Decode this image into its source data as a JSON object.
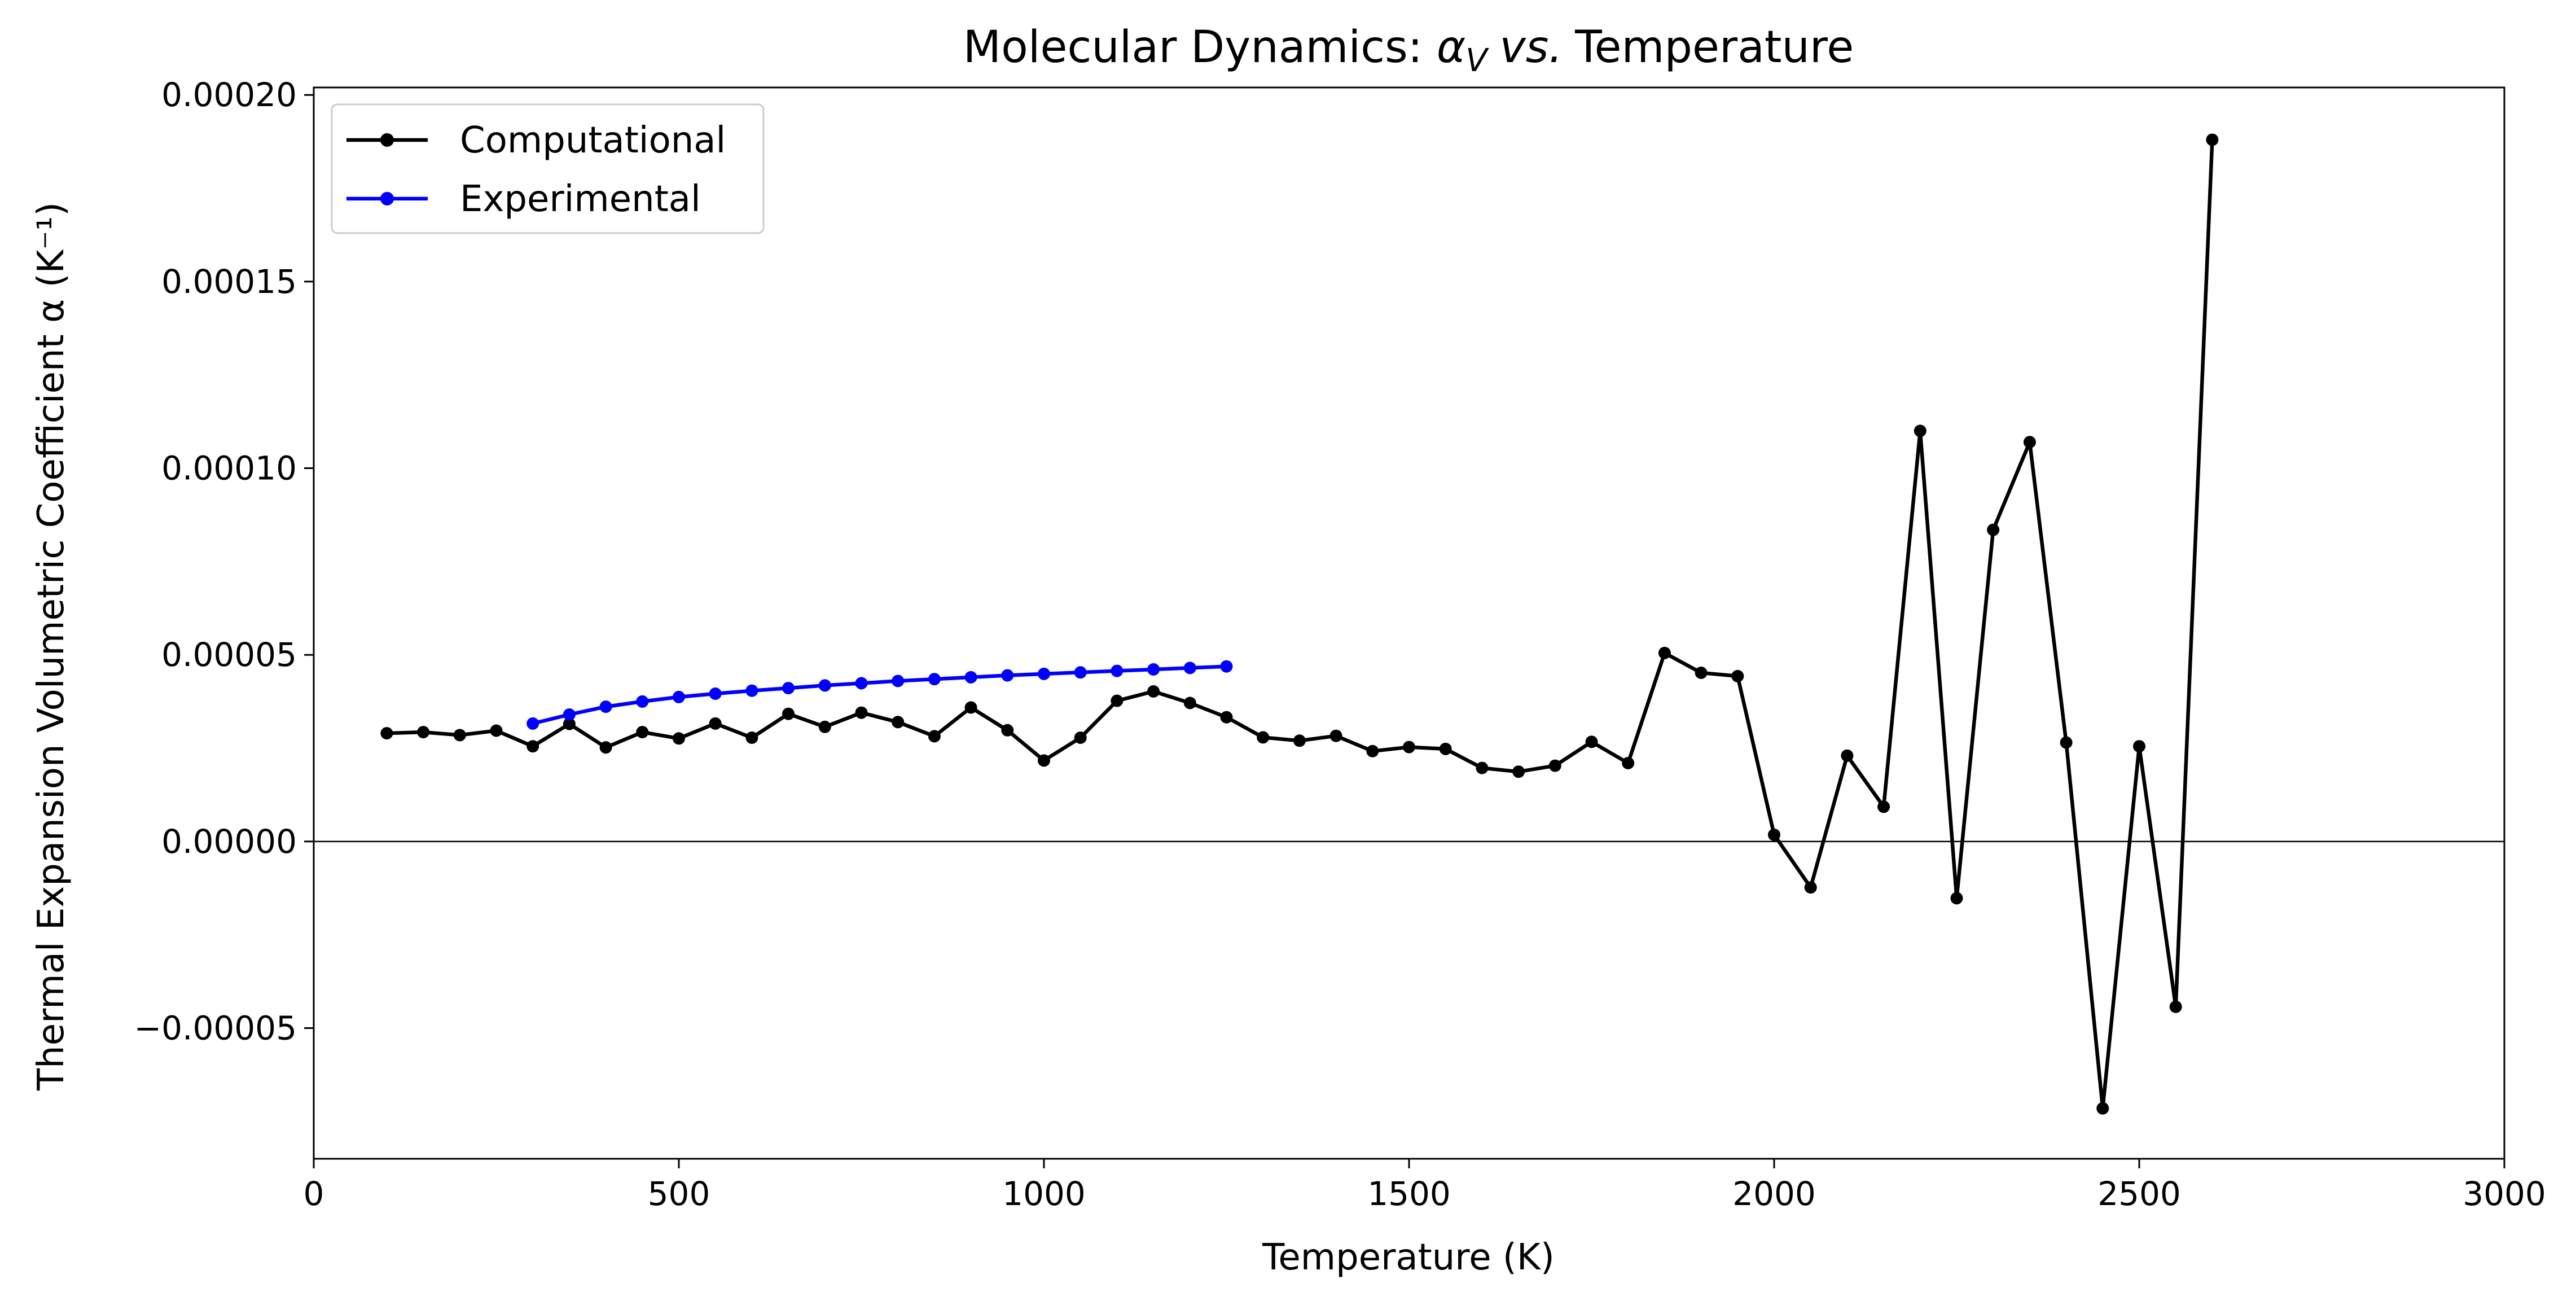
{
  "chart_data": {
    "type": "line",
    "title": {
      "prefix": "Molecular Dynamics: ",
      "alpha": "α",
      "sub": "V",
      "vs": "vs.",
      "suffix": "Temperature"
    },
    "xlabel": "Temperature (K)",
    "ylabel": "Thermal Expansion Volumetric Coefficient α (K⁻¹)",
    "xlim": [
      0,
      3000
    ],
    "ylim": [
      -8.5e-05,
      0.000202
    ],
    "xticks": [
      0,
      500,
      1000,
      1500,
      2000,
      2500,
      3000
    ],
    "xtick_labels": [
      "0",
      "500",
      "1000",
      "1500",
      "2000",
      "2500",
      "3000"
    ],
    "yticks": [
      -5e-05,
      0,
      5e-05,
      0.0001,
      0.00015,
      0.0002
    ],
    "ytick_labels": [
      "−0.00005",
      "0.00000",
      "0.00005",
      "0.00010",
      "0.00015",
      "0.00020"
    ],
    "zero_line": true,
    "grid": false,
    "legend_position": "top-left",
    "series": [
      {
        "name": "Computational",
        "color": "#000000",
        "marker": "circle",
        "points": [
          [
            100,
            2.9e-05
          ],
          [
            150,
            2.93e-05
          ],
          [
            200,
            2.85e-05
          ],
          [
            250,
            2.97e-05
          ],
          [
            300,
            2.55e-05
          ],
          [
            350,
            3.15e-05
          ],
          [
            400,
            2.52e-05
          ],
          [
            450,
            2.93e-05
          ],
          [
            500,
            2.76e-05
          ],
          [
            550,
            3.16e-05
          ],
          [
            600,
            2.78e-05
          ],
          [
            650,
            3.42e-05
          ],
          [
            700,
            3.07e-05
          ],
          [
            750,
            3.45e-05
          ],
          [
            800,
            3.2e-05
          ],
          [
            850,
            2.82e-05
          ],
          [
            900,
            3.59e-05
          ],
          [
            950,
            2.98e-05
          ],
          [
            1000,
            2.17e-05
          ],
          [
            1050,
            2.78e-05
          ],
          [
            1100,
            3.77e-05
          ],
          [
            1150,
            4.02e-05
          ],
          [
            1200,
            3.71e-05
          ],
          [
            1250,
            3.33e-05
          ],
          [
            1300,
            2.79e-05
          ],
          [
            1350,
            2.7e-05
          ],
          [
            1400,
            2.83e-05
          ],
          [
            1450,
            2.42e-05
          ],
          [
            1500,
            2.53e-05
          ],
          [
            1550,
            2.48e-05
          ],
          [
            1600,
            1.97e-05
          ],
          [
            1650,
            1.87e-05
          ],
          [
            1700,
            2.03e-05
          ],
          [
            1750,
            2.67e-05
          ],
          [
            1800,
            2.1e-05
          ],
          [
            1850,
            5.05e-05
          ],
          [
            1900,
            4.52e-05
          ],
          [
            1950,
            4.43e-05
          ],
          [
            2000,
            1.8e-06
          ],
          [
            2050,
            -1.23e-05
          ],
          [
            2100,
            2.3e-05
          ],
          [
            2150,
            9.3e-06
          ],
          [
            2200,
            0.00011
          ],
          [
            2250,
            -1.52e-05
          ],
          [
            2300,
            8.35e-05
          ],
          [
            2350,
            0.000107
          ],
          [
            2400,
            2.65e-05
          ],
          [
            2450,
            -7.15e-05
          ],
          [
            2500,
            2.55e-05
          ],
          [
            2550,
            -4.43e-05
          ],
          [
            2600,
            0.000188
          ]
        ]
      },
      {
        "name": "Experimental",
        "color": "#0000ff",
        "marker": "circle",
        "points": [
          [
            300,
            3.16e-05
          ],
          [
            350,
            3.4e-05
          ],
          [
            400,
            3.61e-05
          ],
          [
            450,
            3.75e-05
          ],
          [
            500,
            3.87e-05
          ],
          [
            550,
            3.96e-05
          ],
          [
            600,
            4.04e-05
          ],
          [
            650,
            4.11e-05
          ],
          [
            700,
            4.18e-05
          ],
          [
            750,
            4.24e-05
          ],
          [
            800,
            4.3e-05
          ],
          [
            850,
            4.35e-05
          ],
          [
            900,
            4.4e-05
          ],
          [
            950,
            4.45e-05
          ],
          [
            1000,
            4.49e-05
          ],
          [
            1050,
            4.53e-05
          ],
          [
            1100,
            4.57e-05
          ],
          [
            1150,
            4.61e-05
          ],
          [
            1200,
            4.65e-05
          ],
          [
            1250,
            4.69e-05
          ]
        ]
      }
    ]
  }
}
